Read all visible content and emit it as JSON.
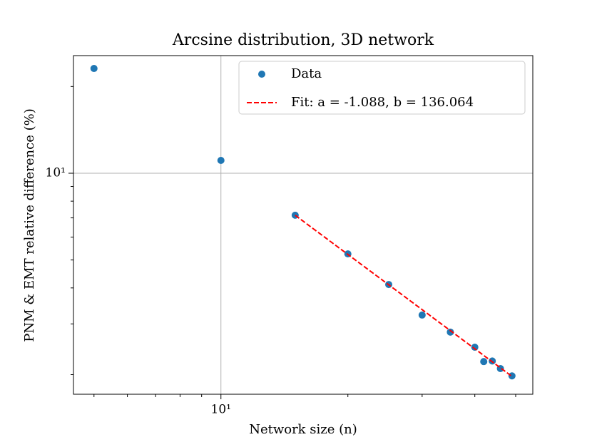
{
  "chart_data": {
    "type": "scatter",
    "title": "Arcsine distribution, 3D network",
    "xlabel": "Network size (n)",
    "ylabel": "PNM & EMT relative difference (%)",
    "xscale": "log",
    "yscale": "log",
    "xlim": [
      4.47,
      54.9
    ],
    "ylim": [
      1.71,
      25.6
    ],
    "xticks": [
      {
        "value": 10,
        "label": "10¹"
      }
    ],
    "yticks": [
      {
        "value": 10,
        "label": "10¹"
      }
    ],
    "xminorticks": [
      5,
      6,
      7,
      8,
      9,
      20,
      30,
      40,
      50
    ],
    "yminorticks": [
      2,
      3,
      4,
      5,
      6,
      7,
      8,
      9,
      20
    ],
    "grid": true,
    "legend": "upper right",
    "series": [
      {
        "name": "Data",
        "color": "#1f77b4",
        "x": [
          5,
          10,
          15,
          20,
          25,
          30,
          35,
          40,
          42,
          44,
          46,
          49
        ],
        "values": [
          23.1,
          11.08,
          7.15,
          5.25,
          4.11,
          3.22,
          2.81,
          2.49,
          2.22,
          2.23,
          2.1,
          1.98
        ]
      },
      {
        "name": "Fit: a = -1.088, b = 136.064",
        "color": "#ff0000",
        "a": -1.088,
        "b": 136.064,
        "x": [
          15,
          49
        ]
      }
    ]
  }
}
